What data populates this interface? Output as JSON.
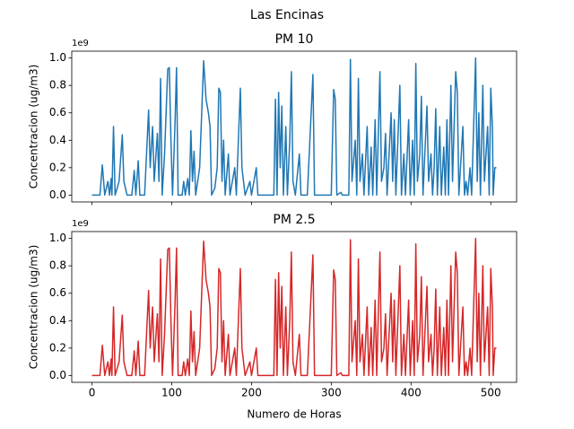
{
  "title": "Las Encinas",
  "chart_data": [
    {
      "type": "line",
      "title": "PM 10",
      "ylabel": "Concentracion (ug/m3)",
      "offset_text": "1e9",
      "color": "#1f77b4",
      "xlim": [
        -25.35,
        532.35
      ],
      "ylim": [
        -0.05,
        1.05
      ],
      "yticks": [
        {
          "value": 0,
          "label": "0.0"
        },
        {
          "value": 0.2,
          "label": "0.2"
        },
        {
          "value": 0.4,
          "label": "0.4"
        },
        {
          "value": 0.6,
          "label": "0.6"
        },
        {
          "value": 0.8,
          "label": "0.8"
        },
        {
          "value": 1,
          "label": "1.0"
        }
      ],
      "x": [
        0,
        10,
        13,
        16,
        20,
        22,
        24,
        25,
        27,
        29,
        34,
        38,
        40,
        44,
        50,
        53,
        55,
        58,
        60,
        66,
        71,
        73,
        76,
        78,
        82,
        84,
        86,
        88,
        91,
        95,
        97,
        99,
        101,
        104,
        106,
        108,
        113,
        115,
        117,
        120,
        122,
        124,
        126,
        128,
        130,
        135,
        140,
        143,
        146,
        148,
        150,
        154,
        157,
        159,
        161,
        163,
        165,
        167,
        171,
        173,
        179,
        181,
        186,
        188,
        192,
        198,
        200,
        206,
        208,
        228,
        230,
        232,
        234,
        236,
        238,
        240,
        243,
        245,
        248,
        250,
        252,
        255,
        260,
        262,
        270,
        277,
        279,
        300,
        303,
        305,
        307,
        312,
        314,
        322,
        324,
        326,
        330,
        332,
        334,
        336,
        339,
        341,
        345,
        347,
        350,
        352,
        355,
        357,
        361,
        363,
        366,
        368,
        370,
        375,
        377,
        379,
        381,
        386,
        388,
        391,
        393,
        397,
        399,
        402,
        404,
        406,
        408,
        411,
        413,
        415,
        420,
        422,
        425,
        427,
        429,
        431,
        433,
        436,
        438,
        441,
        443,
        445,
        447,
        450,
        452,
        456,
        458,
        460,
        465,
        467,
        469,
        471,
        474,
        476,
        481,
        483,
        485,
        487,
        490,
        492,
        496,
        498,
        500,
        502,
        503,
        505,
        507
      ],
      "values": [
        0,
        0,
        0.22,
        0,
        0.1,
        0,
        0.12,
        0,
        0.5,
        0,
        0.1,
        0.44,
        0.1,
        0,
        0,
        0.18,
        0,
        0.25,
        0,
        0,
        0.62,
        0.2,
        0.5,
        0.1,
        0.45,
        0.1,
        0.85,
        0,
        0.3,
        0.92,
        0.93,
        0.4,
        0,
        0.5,
        0.93,
        0,
        0,
        0.1,
        0,
        0.12,
        0,
        0.47,
        0.1,
        0.32,
        0,
        0.2,
        0.98,
        0.7,
        0.6,
        0.5,
        0,
        0.05,
        0.2,
        0.78,
        0.75,
        0.1,
        0.4,
        0,
        0.3,
        0,
        0.2,
        0,
        0.78,
        0.2,
        0,
        0.1,
        0,
        0.2,
        0,
        0,
        0.7,
        0,
        0.75,
        0.2,
        0.65,
        0,
        0.5,
        0,
        0.4,
        0.9,
        0.1,
        0,
        0.3,
        0,
        0,
        0.88,
        0,
        0,
        0.77,
        0.7,
        0,
        0.02,
        0,
        0,
        0.99,
        0.1,
        0.4,
        0,
        0.85,
        0.1,
        0.3,
        0,
        0.5,
        0,
        0.35,
        0,
        0.55,
        0,
        0.9,
        0.1,
        0.2,
        0.45,
        0,
        0.6,
        0.1,
        0.55,
        0,
        0.8,
        0,
        0.3,
        0,
        0.55,
        0,
        0.4,
        0,
        0.96,
        0.1,
        0.3,
        0.72,
        0,
        0.65,
        0.1,
        0.3,
        0,
        0.2,
        0.63,
        0,
        0.5,
        0,
        0.35,
        0,
        0.55,
        0,
        0.8,
        0.1,
        0.9,
        0.75,
        0,
        0.5,
        0,
        0.1,
        0,
        0.2,
        0,
        1.0,
        0.1,
        0.6,
        0,
        0.8,
        0.1,
        0.5,
        0,
        0.78,
        0.5,
        0,
        0.2,
        0.2
      ]
    },
    {
      "type": "line",
      "title": "PM 2.5",
      "ylabel": "Concentracion (ug/m3)",
      "xlabel": "Numero de Horas",
      "offset_text": "1e9",
      "color": "#d62728",
      "xlim": [
        -25.35,
        532.35
      ],
      "ylim": [
        -0.05,
        1.05
      ],
      "xticks": [
        0,
        100,
        200,
        300,
        400,
        500
      ],
      "yticks": [
        {
          "value": 0,
          "label": "0.0"
        },
        {
          "value": 0.2,
          "label": "0.2"
        },
        {
          "value": 0.4,
          "label": "0.4"
        },
        {
          "value": 0.6,
          "label": "0.6"
        },
        {
          "value": 0.8,
          "label": "0.8"
        },
        {
          "value": 1,
          "label": "1.0"
        }
      ],
      "x": [
        0,
        10,
        13,
        16,
        20,
        22,
        24,
        25,
        27,
        29,
        34,
        38,
        40,
        44,
        50,
        53,
        55,
        58,
        60,
        66,
        71,
        73,
        76,
        78,
        82,
        84,
        86,
        88,
        91,
        95,
        97,
        99,
        101,
        104,
        106,
        108,
        113,
        115,
        117,
        120,
        122,
        124,
        126,
        128,
        130,
        135,
        140,
        143,
        146,
        148,
        150,
        154,
        157,
        159,
        161,
        163,
        165,
        167,
        171,
        173,
        179,
        181,
        186,
        188,
        192,
        198,
        200,
        206,
        208,
        228,
        230,
        232,
        234,
        236,
        238,
        240,
        243,
        245,
        248,
        250,
        252,
        255,
        260,
        262,
        270,
        277,
        279,
        300,
        303,
        305,
        307,
        312,
        314,
        322,
        324,
        326,
        330,
        332,
        334,
        336,
        339,
        341,
        345,
        347,
        350,
        352,
        355,
        357,
        361,
        363,
        366,
        368,
        370,
        375,
        377,
        379,
        381,
        386,
        388,
        391,
        393,
        397,
        399,
        402,
        404,
        406,
        408,
        411,
        413,
        415,
        420,
        422,
        425,
        427,
        429,
        431,
        433,
        436,
        438,
        441,
        443,
        445,
        447,
        450,
        452,
        456,
        458,
        460,
        465,
        467,
        469,
        471,
        474,
        476,
        481,
        483,
        485,
        487,
        490,
        492,
        496,
        498,
        500,
        502,
        503,
        505,
        507
      ],
      "values": [
        0,
        0,
        0.22,
        0,
        0.1,
        0,
        0.12,
        0,
        0.5,
        0,
        0.1,
        0.44,
        0.1,
        0,
        0,
        0.18,
        0,
        0.25,
        0,
        0,
        0.62,
        0.2,
        0.5,
        0.1,
        0.45,
        0.1,
        0.85,
        0,
        0.3,
        0.92,
        0.93,
        0.4,
        0,
        0.5,
        0.93,
        0,
        0,
        0.1,
        0,
        0.12,
        0,
        0.47,
        0.1,
        0.32,
        0,
        0.2,
        0.98,
        0.7,
        0.6,
        0.5,
        0,
        0.05,
        0.2,
        0.78,
        0.75,
        0.1,
        0.4,
        0,
        0.3,
        0,
        0.2,
        0,
        0.78,
        0.2,
        0,
        0.1,
        0,
        0.2,
        0,
        0,
        0.7,
        0,
        0.75,
        0.2,
        0.65,
        0,
        0.5,
        0,
        0.4,
        0.9,
        0.1,
        0,
        0.3,
        0,
        0,
        0.88,
        0,
        0,
        0.77,
        0.7,
        0,
        0.02,
        0,
        0,
        0.99,
        0.1,
        0.4,
        0,
        0.85,
        0.1,
        0.3,
        0,
        0.5,
        0,
        0.35,
        0,
        0.55,
        0,
        0.9,
        0.1,
        0.2,
        0.45,
        0,
        0.6,
        0.1,
        0.55,
        0,
        0.8,
        0,
        0.3,
        0,
        0.55,
        0,
        0.4,
        0,
        0.96,
        0.1,
        0.3,
        0.72,
        0,
        0.65,
        0.1,
        0.3,
        0,
        0.2,
        0.63,
        0,
        0.5,
        0,
        0.35,
        0,
        0.55,
        0,
        0.8,
        0.1,
        0.9,
        0.75,
        0,
        0.5,
        0,
        0.1,
        0,
        0.2,
        0,
        1.0,
        0.1,
        0.6,
        0,
        0.8,
        0.1,
        0.5,
        0,
        0.78,
        0.5,
        0,
        0.2,
        0.2
      ]
    }
  ]
}
